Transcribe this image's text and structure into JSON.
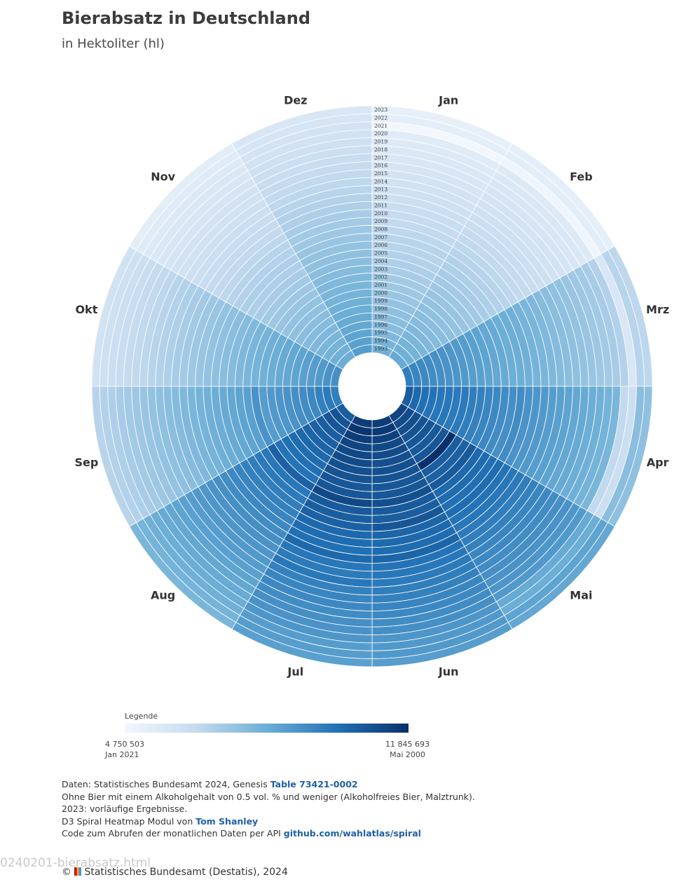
{
  "header": {
    "title": "Bierabsatz in Deutschland",
    "subtitle": "in Hektoliter (hl)"
  },
  "chart_data": {
    "type": "heatmap",
    "title": "Bierabsatz in Deutschland",
    "subtitle": "in Hektoliter (hl)",
    "layout": "spiral",
    "months": [
      "Jan",
      "Feb",
      "Mrz",
      "Apr",
      "Mai",
      "Jun",
      "Jul",
      "Aug",
      "Sep",
      "Okt",
      "Nov",
      "Dez"
    ],
    "years": [
      "1993",
      "1994",
      "1995",
      "1996",
      "1997",
      "1998",
      "1999",
      "2000",
      "2001",
      "2002",
      "2003",
      "2004",
      "2005",
      "2006",
      "2007",
      "2008",
      "2009",
      "2010",
      "2011",
      "2012",
      "2013",
      "2014",
      "2015",
      "2016",
      "2017",
      "2018",
      "2019",
      "2020",
      "2021",
      "2022",
      "2023"
    ],
    "value_range": [
      4750503,
      11845693
    ],
    "colors": [
      "#f2f7fd",
      "#c6dbef",
      "#6baed6",
      "#2171b5",
      "#08306b"
    ],
    "values": [
      [
        8200000,
        8400000,
        9700000,
        10600000,
        11300000,
        11500000,
        11500000,
        10600000,
        9700000,
        9200000,
        8300000,
        8800000
      ],
      [
        8100000,
        8200000,
        9500000,
        10300000,
        11100000,
        11600000,
        11700000,
        10900000,
        9800000,
        9100000,
        8200000,
        8700000
      ],
      [
        7900000,
        8100000,
        9400000,
        10100000,
        11000000,
        11400000,
        11500000,
        10800000,
        9600000,
        8900000,
        8100000,
        8600000
      ],
      [
        7800000,
        8000000,
        9300000,
        10000000,
        10900000,
        11200000,
        11300000,
        10600000,
        9400000,
        8800000,
        8000000,
        8500000
      ],
      [
        7700000,
        7900000,
        9200000,
        9900000,
        10800000,
        11100000,
        11200000,
        10500000,
        9300000,
        8700000,
        7900000,
        8400000
      ],
      [
        7600000,
        7800000,
        9100000,
        9900000,
        10700000,
        11000000,
        11100000,
        10400000,
        9200000,
        8600000,
        7800000,
        8300000
      ],
      [
        7500000,
        7700000,
        9000000,
        9800000,
        10800000,
        11000000,
        11000000,
        10300000,
        9100000,
        8500000,
        7700000,
        8200000
      ],
      [
        7400000,
        7600000,
        8900000,
        9800000,
        11845693,
        10900000,
        10900000,
        10200000,
        9000000,
        8400000,
        7600000,
        8100000
      ],
      [
        7300000,
        7500000,
        8800000,
        9700000,
        10600000,
        10800000,
        10800000,
        10100000,
        8900000,
        8300000,
        7500000,
        8000000
      ],
      [
        7200000,
        7400000,
        8700000,
        9600000,
        10500000,
        10800000,
        10800000,
        10000000,
        8800000,
        8200000,
        7400000,
        7900000
      ],
      [
        7100000,
        7300000,
        8600000,
        9500000,
        10700000,
        11000000,
        11200000,
        10500000,
        9100000,
        8100000,
        7300000,
        7800000
      ],
      [
        7000000,
        7200000,
        8500000,
        9400000,
        10300000,
        10700000,
        10700000,
        9900000,
        8700000,
        8000000,
        7200000,
        7700000
      ],
      [
        6900000,
        7100000,
        8400000,
        9300000,
        10200000,
        10600000,
        10600000,
        9800000,
        8600000,
        7900000,
        7100000,
        7600000
      ],
      [
        6800000,
        7000000,
        8300000,
        9200000,
        10100000,
        10800000,
        10500000,
        9700000,
        8500000,
        7800000,
        7000000,
        7500000
      ],
      [
        6800000,
        6900000,
        8300000,
        9300000,
        10200000,
        10400000,
        10300000,
        9600000,
        8400000,
        7700000,
        7000000,
        7400000
      ],
      [
        6700000,
        6800000,
        8200000,
        9100000,
        10000000,
        10300000,
        10200000,
        9500000,
        8300000,
        7600000,
        6900000,
        7300000
      ],
      [
        6600000,
        6700000,
        8100000,
        9000000,
        9900000,
        10200000,
        10100000,
        9400000,
        8200000,
        7500000,
        6800000,
        7200000
      ],
      [
        6500000,
        6600000,
        8000000,
        8900000,
        9800000,
        10400000,
        10300000,
        9300000,
        8100000,
        7400000,
        6700000,
        7100000
      ],
      [
        6400000,
        6500000,
        7900000,
        8800000,
        9700000,
        10000000,
        9900000,
        9200000,
        8000000,
        7300000,
        6600000,
        7000000
      ],
      [
        6300000,
        6400000,
        7800000,
        8700000,
        9600000,
        9900000,
        9800000,
        9100000,
        7900000,
        7200000,
        6500000,
        6900000
      ],
      [
        6200000,
        6300000,
        7700000,
        8600000,
        9500000,
        9800000,
        9900000,
        9000000,
        7800000,
        7100000,
        6400000,
        6800000
      ],
      [
        6100000,
        6200000,
        7600000,
        8500000,
        9400000,
        9700000,
        9600000,
        8900000,
        7700000,
        7000000,
        6300000,
        6700000
      ],
      [
        6000000,
        6100000,
        7500000,
        8400000,
        9300000,
        9600000,
        9500000,
        8800000,
        7600000,
        6900000,
        6200000,
        6600000
      ],
      [
        5900000,
        6000000,
        7400000,
        8300000,
        9200000,
        9500000,
        9400000,
        8700000,
        7500000,
        6800000,
        6100000,
        6500000
      ],
      [
        5800000,
        5900000,
        7300000,
        8200000,
        9100000,
        9400000,
        9300000,
        8600000,
        7400000,
        6700000,
        6000000,
        6400000
      ],
      [
        5700000,
        5800000,
        7200000,
        8100000,
        9000000,
        9300000,
        9200000,
        8500000,
        7300000,
        6600000,
        5900000,
        6300000
      ],
      [
        5600000,
        5700000,
        7100000,
        8000000,
        8900000,
        9200000,
        9100000,
        8400000,
        7200000,
        6500000,
        5800000,
        6200000
      ],
      [
        5500000,
        5600000,
        6900000,
        6600000,
        8400000,
        9000000,
        9000000,
        8300000,
        7100000,
        6400000,
        5700000,
        6100000
      ],
      [
        4750503,
        4900000,
        5800000,
        6300000,
        8300000,
        8900000,
        8800000,
        8200000,
        7000000,
        6300000,
        5600000,
        6000000
      ],
      [
        5300000,
        5400000,
        6800000,
        7700000,
        8600000,
        8900000,
        8800000,
        8100000,
        6900000,
        6200000,
        5500000,
        5900000
      ],
      [
        5200000,
        5300000,
        6700000,
        7600000,
        8500000,
        8800000,
        8700000,
        8000000,
        6800000,
        6100000,
        5400000,
        5800000
      ]
    ]
  },
  "legend": {
    "title": "Legende",
    "min_value": "4 750 503",
    "min_label": "Jan 2021",
    "max_value": "11 845 693",
    "max_label": "Mai 2000"
  },
  "notes": {
    "line1_prefix": "Daten: Statistisches Bundesamt 2024, Genesis ",
    "line1_link": "Table 73421-0002",
    "line2": "Ohne Bier mit einem Alkoholgehalt von 0.5 vol. % und weniger (Alkoholfreies Bier, Malztrunk).",
    "line3": "2023: vorläufige Ergebnisse.",
    "line4_prefix": "D3 Spiral Heatmap Modul von ",
    "line4_link": "Tom Shanley",
    "line5_prefix": "Code zum Abrufen der monatlichen Daten per API ",
    "line5_link": "github.com/wahlatlas/spiral"
  },
  "filename": "0240201-bierabsatz.html",
  "footer": {
    "prefix": "© ",
    "text": "Statistisches Bundesamt (Destatis), 2024"
  }
}
